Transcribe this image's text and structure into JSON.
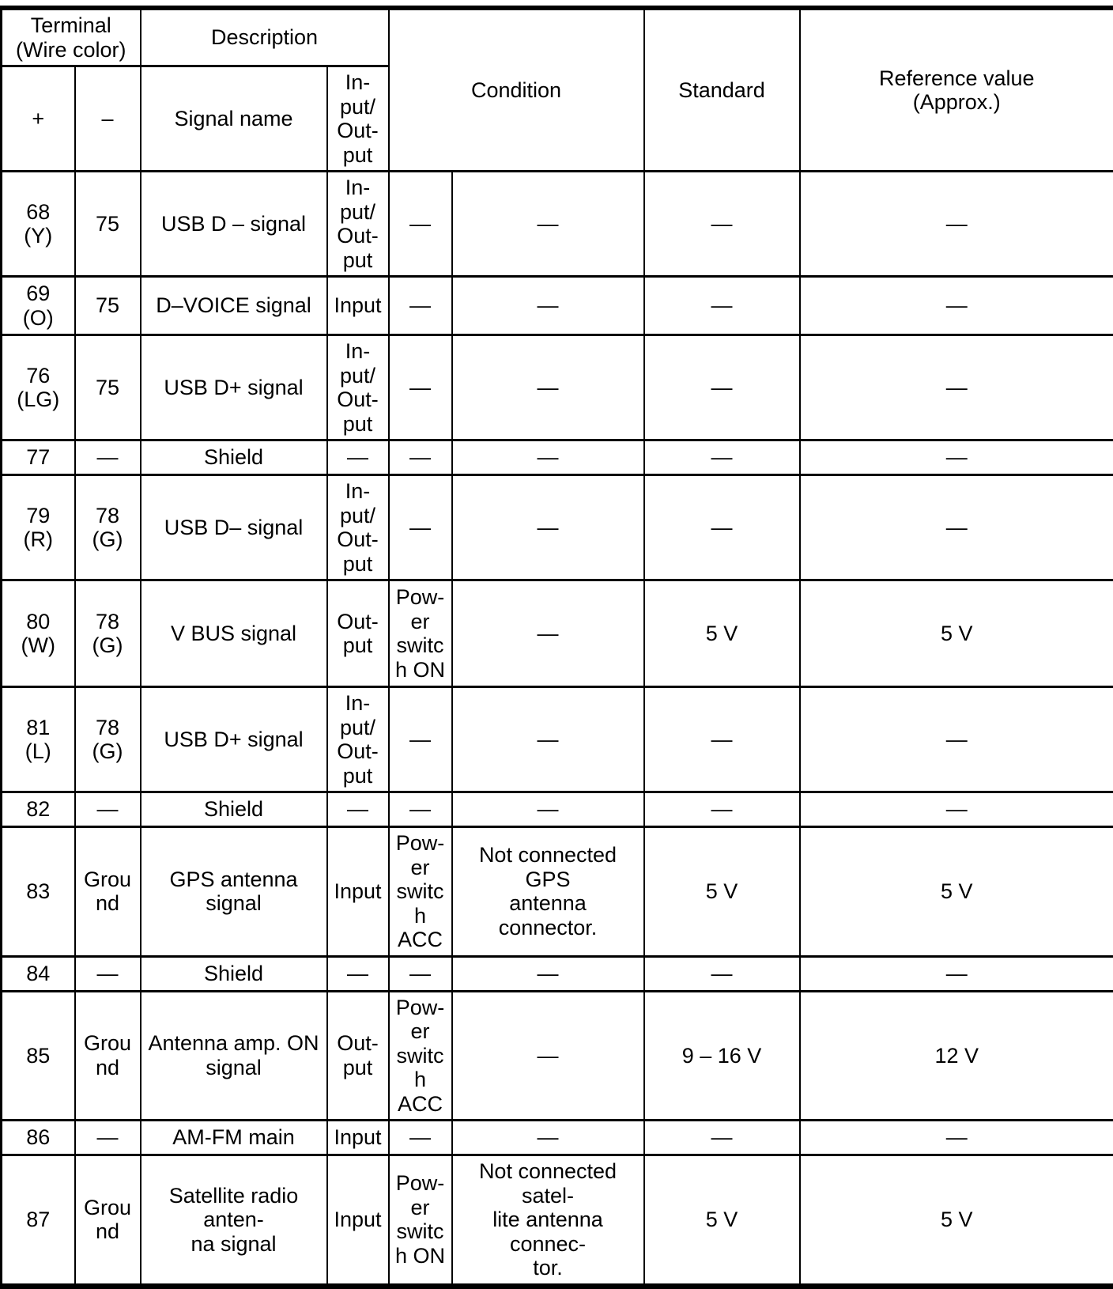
{
  "table": {
    "header": {
      "terminal": "Terminal\n(Wire color)",
      "description": "Description",
      "plus": "+",
      "minus": "–",
      "signal_name": "Signal name",
      "io": "In-\nput/\nOut-\nput",
      "condition": "Condition",
      "standard": "Standard",
      "reference": "Reference value\n(Approx.)"
    },
    "rows": [
      {
        "plus": "68\n(Y)",
        "minus": "75",
        "signal": "USB D – signal",
        "io": "In-\nput/\nOut-\nput",
        "cond_a": "—",
        "cond_b": "—",
        "standard": "—",
        "reference": "—"
      },
      {
        "plus": "69\n(O)",
        "minus": "75",
        "signal": "D–VOICE signal",
        "io": "Input",
        "cond_a": "—",
        "cond_b": "—",
        "standard": "—",
        "reference": "—"
      },
      {
        "plus": "76\n(LG)",
        "minus": "75",
        "signal": "USB D+ signal",
        "io": "In-\nput/\nOut-\nput",
        "cond_a": "—",
        "cond_b": "—",
        "standard": "—",
        "reference": "—"
      },
      {
        "plus": "77",
        "minus": "—",
        "signal": "Shield",
        "io": "—",
        "cond_a": "—",
        "cond_b": "—",
        "standard": "—",
        "reference": "—"
      },
      {
        "plus": "79\n(R)",
        "minus": "78\n(G)",
        "signal": "USB D– signal",
        "io": "In-\nput/\nOut-\nput",
        "cond_a": "—",
        "cond_b": "—",
        "standard": "—",
        "reference": "—"
      },
      {
        "plus": "80\n(W)",
        "minus": "78\n(G)",
        "signal": "V BUS signal",
        "io": "Out-\nput",
        "cond_a": "Pow-\ner\nswitc\nh ON",
        "cond_b": "—",
        "standard": "5 V",
        "reference": "5 V"
      },
      {
        "plus": "81\n(L)",
        "minus": "78\n(G)",
        "signal": "USB D+ signal",
        "io": "In-\nput/\nOut-\nput",
        "cond_a": "—",
        "cond_b": "—",
        "standard": "—",
        "reference": "—"
      },
      {
        "plus": "82",
        "minus": "—",
        "signal": "Shield",
        "io": "—",
        "cond_a": "—",
        "cond_b": "—",
        "standard": "—",
        "reference": "—"
      },
      {
        "plus": "83",
        "minus": "Grou\nnd",
        "signal": "GPS antenna signal",
        "io": "Input",
        "cond_a": "Pow-\ner\nswitc\nh\nACC",
        "cond_b": "Not connected GPS\nantenna connector.",
        "standard": "5 V",
        "reference": "5 V"
      },
      {
        "plus": "84",
        "minus": "—",
        "signal": "Shield",
        "io": "—",
        "cond_a": "—",
        "cond_b": "—",
        "standard": "—",
        "reference": "—"
      },
      {
        "plus": "85",
        "minus": "Grou\nnd",
        "signal": "Antenna amp. ON\nsignal",
        "io": "Out-\nput",
        "cond_a": "Pow-\ner\nswitc\nh\nACC",
        "cond_b": "—",
        "standard": "9 – 16 V",
        "reference": "12 V"
      },
      {
        "plus": "86",
        "minus": "—",
        "signal": "AM-FM main",
        "io": "Input",
        "cond_a": "—",
        "cond_b": "—",
        "standard": "—",
        "reference": "—"
      },
      {
        "plus": "87",
        "minus": "Grou\nnd",
        "signal": "Satellite radio anten-\nna signal",
        "io": "Input",
        "cond_a": "Pow-\ner\nswitc\nh ON",
        "cond_b": "Not connected satel-\nlite antenna connec-\ntor.",
        "standard": "5 V",
        "reference": "5 V"
      }
    ]
  }
}
